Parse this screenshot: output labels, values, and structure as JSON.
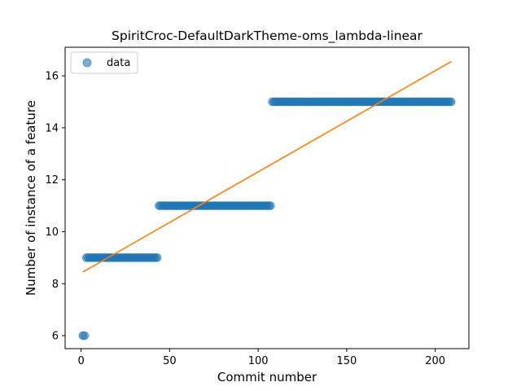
{
  "chart_data": {
    "type": "scatter",
    "title": "SpiritCroc-DefaultDarkTheme-oms_lambda-linear",
    "xlabel": "Commit number",
    "ylabel": "Number of instance of a feature",
    "xlim": [
      -9,
      219
    ],
    "ylim": [
      5.5,
      17.1
    ],
    "xticks": [
      0,
      50,
      100,
      150,
      200
    ],
    "yticks": [
      6,
      8,
      10,
      12,
      14,
      16
    ],
    "grid": false,
    "legend": {
      "position": "top-left",
      "entries": [
        "data"
      ]
    },
    "colors": {
      "points": "#1f77b4",
      "fit_line": "#ff7f0e"
    },
    "series": [
      {
        "name": "data",
        "kind": "scatter",
        "segments": [
          {
            "x_start": 1,
            "x_end": 2,
            "y": 6
          },
          {
            "x_start": 3,
            "x_end": 43,
            "y": 9
          },
          {
            "x_start": 44,
            "x_end": 107,
            "y": 11
          },
          {
            "x_start": 108,
            "x_end": 209,
            "y": 15
          }
        ]
      },
      {
        "kind": "line",
        "points": [
          [
            1,
            8.45
          ],
          [
            209,
            16.55
          ]
        ]
      }
    ]
  }
}
